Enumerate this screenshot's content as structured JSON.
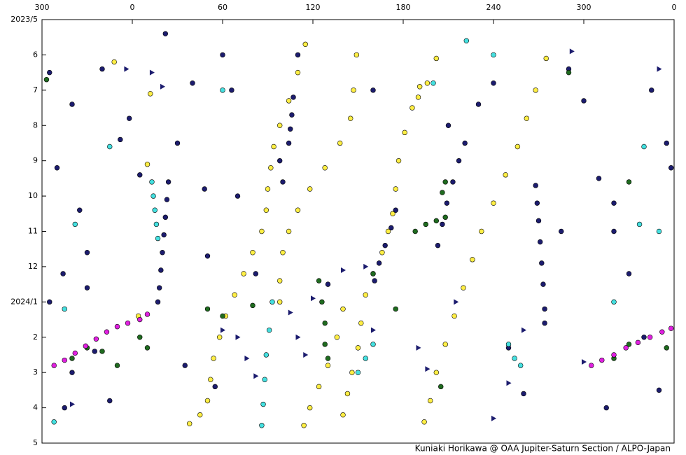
{
  "chart_data": {
    "type": "scatter",
    "credit": "Kuniaki Horikawa @ OAA Jupiter-Saturn Section / ALPO-Japan",
    "xlim": [
      -60,
      360
    ],
    "xticks": [
      {
        "value": -60,
        "label": "300"
      },
      0,
      60,
      120,
      180,
      240,
      300,
      {
        "value": 360,
        "label": "0"
      }
    ],
    "ylim": [
      5,
      17
    ],
    "y_inverted": true,
    "yticks": [
      {
        "value": 5,
        "label": "2023/5"
      },
      6,
      7,
      8,
      9,
      10,
      11,
      12,
      {
        "value": 13,
        "label": "2024/1"
      },
      {
        "value": 14,
        "label": "2"
      },
      {
        "value": 15,
        "label": "3"
      },
      {
        "value": 16,
        "label": "4"
      },
      {
        "value": 17,
        "label": "5"
      }
    ],
    "series": [
      {
        "color": "#1c1c6e",
        "marker": "circle",
        "x": [
          24,
          23,
          22,
          21,
          20,
          19,
          18,
          17,
          268,
          269,
          270,
          271,
          272,
          273,
          274,
          274,
          107,
          106,
          105,
          104,
          175,
          172,
          168,
          164,
          161,
          221,
          217,
          213,
          209,
          206,
          203,
          98,
          100,
          -55,
          -40,
          -20,
          -8,
          -2,
          5,
          -50,
          -35,
          -30,
          -46,
          -30,
          -55,
          -25,
          -40,
          -15,
          -45,
          22,
          30,
          40,
          48,
          50,
          35,
          60,
          66,
          70,
          55,
          82,
          110,
          130,
          160,
          210,
          230,
          240,
          250,
          260,
          290,
          300,
          310,
          320,
          330,
          345,
          355,
          358,
          340,
          350,
          315,
          285,
          320
        ],
        "y": [
          9.6,
          10.1,
          10.6,
          11.1,
          11.6,
          12.1,
          12.6,
          13.0,
          9.7,
          10.2,
          10.7,
          11.3,
          11.9,
          12.5,
          13.2,
          13.6,
          7.2,
          7.7,
          8.1,
          8.5,
          10.4,
          10.9,
          11.4,
          11.9,
          12.4,
          8.5,
          9.0,
          9.6,
          10.2,
          10.8,
          11.4,
          9.0,
          9.6,
          6.5,
          7.4,
          6.4,
          8.4,
          7.8,
          9.4,
          9.2,
          10.4,
          11.6,
          12.2,
          12.6,
          13.0,
          14.4,
          15.0,
          15.8,
          16.0,
          5.4,
          8.5,
          6.8,
          9.8,
          11.7,
          14.8,
          6.0,
          7.0,
          10.0,
          15.4,
          12.2,
          6.0,
          12.5,
          7.0,
          8.0,
          7.4,
          6.8,
          14.3,
          15.6,
          6.4,
          7.3,
          9.5,
          11.0,
          12.2,
          7.0,
          8.5,
          9.2,
          14.0,
          15.5,
          16.0,
          11.0,
          10.2
        ]
      },
      {
        "color": "#ffee44",
        "marker": "circle",
        "x": [
          115,
          110,
          104,
          98,
          94,
          92,
          90,
          89,
          86,
          80,
          74,
          68,
          62,
          58,
          54,
          52,
          50,
          45,
          38,
          149,
          147,
          145,
          138,
          128,
          118,
          110,
          104,
          100,
          98,
          98,
          140,
          136,
          130,
          124,
          118,
          114,
          191,
          186,
          181,
          177,
          175,
          173,
          170,
          166,
          160,
          155,
          152,
          150,
          146,
          143,
          140,
          275,
          268,
          262,
          256,
          248,
          240,
          232,
          226,
          220,
          214,
          208,
          202,
          198,
          194,
          202,
          196,
          190,
          -12,
          12,
          10,
          4
        ],
        "y": [
          5.7,
          6.5,
          7.3,
          8.0,
          8.6,
          9.2,
          9.8,
          10.4,
          11.0,
          11.6,
          12.2,
          12.8,
          13.4,
          14.0,
          14.6,
          15.2,
          15.8,
          16.2,
          16.45,
          6.0,
          7.0,
          7.8,
          8.5,
          9.2,
          9.8,
          10.4,
          11.0,
          11.6,
          12.4,
          13.0,
          13.2,
          14.0,
          14.8,
          15.4,
          16.0,
          16.5,
          6.9,
          7.5,
          8.2,
          9.0,
          9.8,
          10.5,
          11.0,
          11.6,
          12.2,
          12.8,
          13.6,
          14.3,
          15.0,
          15.6,
          16.2,
          6.1,
          7.0,
          7.8,
          8.6,
          9.4,
          10.2,
          11.0,
          11.8,
          12.6,
          13.4,
          14.2,
          15.0,
          15.8,
          16.4,
          6.1,
          6.8,
          7.2,
          6.2,
          7.1,
          9.1,
          13.4
        ]
      },
      {
        "color": "#44e0e0",
        "marker": "circle",
        "x": [
          13,
          14,
          15,
          16,
          17,
          93,
          91,
          89,
          88,
          87,
          86,
          150,
          155,
          160,
          250,
          254,
          258,
          -38,
          -45,
          -52,
          60,
          -15,
          340,
          337,
          350,
          200,
          240,
          222,
          320
        ],
        "y": [
          9.6,
          10.0,
          10.4,
          10.8,
          11.2,
          13.0,
          13.8,
          14.5,
          15.2,
          15.9,
          16.5,
          15.0,
          14.6,
          14.2,
          14.2,
          14.6,
          14.8,
          10.8,
          13.2,
          16.4,
          7.0,
          8.6,
          8.6,
          10.8,
          11.0,
          6.8,
          6.0,
          5.6,
          13.0
        ]
      },
      {
        "color": "#1f6b1f",
        "marker": "circle",
        "x": [
          188,
          195,
          202,
          208,
          124,
          126,
          128,
          128,
          130,
          206,
          208,
          -40,
          -30,
          -20,
          -10,
          5,
          10,
          50,
          60,
          80,
          175,
          205,
          320,
          330,
          355,
          -57,
          290,
          330,
          160
        ],
        "y": [
          11.0,
          10.8,
          10.7,
          10.6,
          12.4,
          13.0,
          13.6,
          14.2,
          14.6,
          9.9,
          9.6,
          14.6,
          14.3,
          14.4,
          14.8,
          14.0,
          14.3,
          13.2,
          13.4,
          13.1,
          13.2,
          15.4,
          14.6,
          14.2,
          14.3,
          6.7,
          6.5,
          9.6,
          12.2
        ]
      },
      {
        "color": "#e020e0",
        "marker": "circle",
        "x": [
          -52,
          -45,
          -38,
          -31,
          -24,
          -17,
          -10,
          -3,
          5,
          10,
          305,
          312,
          320,
          328,
          336,
          344,
          352,
          358
        ],
        "y": [
          14.8,
          14.65,
          14.45,
          14.25,
          14.05,
          13.85,
          13.7,
          13.6,
          13.5,
          13.35,
          14.8,
          14.65,
          14.5,
          14.3,
          14.15,
          14.0,
          13.85,
          13.75
        ]
      },
      {
        "color": "#1c1c6e",
        "marker": "triangle",
        "x": [
          13,
          20,
          -4,
          60,
          70,
          76,
          82,
          105,
          110,
          115,
          120,
          140,
          160,
          190,
          196,
          215,
          250,
          260,
          300,
          350,
          292,
          240,
          155,
          -40
        ],
        "y": [
          6.5,
          6.9,
          6.4,
          13.8,
          14.0,
          14.6,
          15.1,
          13.3,
          14.0,
          14.5,
          12.9,
          12.1,
          13.8,
          14.3,
          14.9,
          13.0,
          15.3,
          13.8,
          14.7,
          6.4,
          5.9,
          16.3,
          12.0,
          15.9
        ]
      }
    ]
  }
}
